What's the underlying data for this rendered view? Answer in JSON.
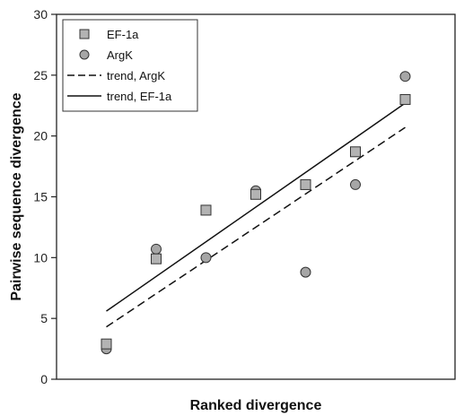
{
  "chart_data": {
    "type": "scatter",
    "title": "",
    "xlabel": "Ranked divergence",
    "ylabel": "Pairwise sequence divergence",
    "x_ticks_shown": false,
    "y_ticks": [
      0,
      5,
      10,
      15,
      20,
      25,
      30
    ],
    "xlim": [
      0,
      8
    ],
    "ylim": [
      0,
      30
    ],
    "grid": false,
    "legend_position": "top-left",
    "series": [
      {
        "name": "EF-1a",
        "kind": "points",
        "marker": "square",
        "color": "#b3b3b3",
        "x": [
          1,
          2,
          3,
          4,
          5,
          6,
          7
        ],
        "y": [
          2.9,
          9.9,
          13.9,
          15.2,
          16.0,
          18.7,
          23.0
        ]
      },
      {
        "name": "ArgK",
        "kind": "points",
        "marker": "circle",
        "color": "#a6a6a6",
        "x": [
          1,
          2,
          3,
          4,
          5,
          6,
          7
        ],
        "y": [
          2.5,
          10.7,
          10.0,
          15.5,
          8.8,
          16.0,
          24.9
        ]
      },
      {
        "name": "trend, ArgK",
        "kind": "line",
        "style": "dashed",
        "color": "#111111",
        "x": [
          1,
          7
        ],
        "y": [
          4.3,
          20.7
        ]
      },
      {
        "name": "trend, EF-1a",
        "kind": "line",
        "style": "solid",
        "color": "#111111",
        "x": [
          1,
          7
        ],
        "y": [
          5.6,
          22.7
        ]
      }
    ]
  }
}
